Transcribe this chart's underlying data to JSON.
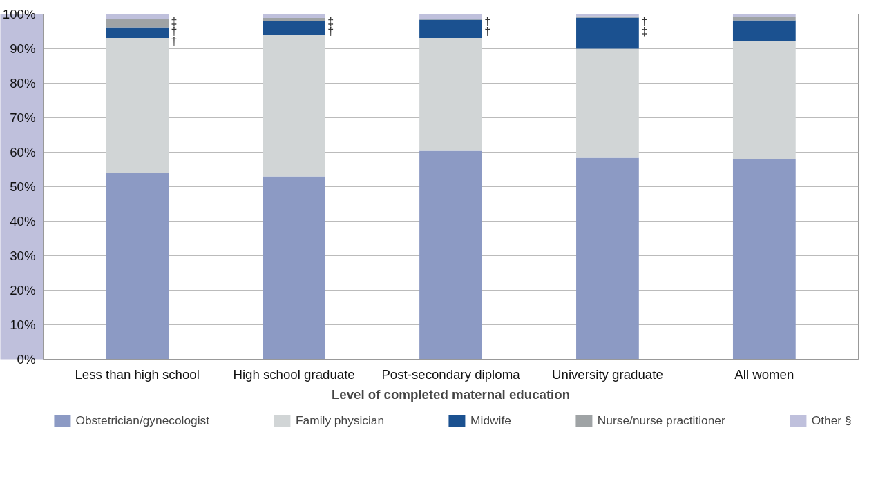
{
  "chart_data": {
    "type": "bar",
    "stacked": true,
    "xlabel": "Level of completed maternal education",
    "categories": [
      "Less than high school",
      "High school graduate",
      "Post-secondary diploma",
      "University graduate",
      "All women"
    ],
    "series": [
      {
        "name": "Obstetrician/gynecologist",
        "color": "#8c9ac4",
        "values": [
          53.9,
          53.0,
          60.4,
          58.4,
          57.9
        ]
      },
      {
        "name": "Family physician",
        "color": "#d1d5d6",
        "values": [
          39.2,
          41.0,
          32.7,
          31.6,
          34.3
        ]
      },
      {
        "name": "Midwife",
        "color": "#1b5190",
        "values": [
          3.1,
          4.0,
          5.3,
          9.0,
          6.0
        ]
      },
      {
        "name": "Nurse/nurse practitioner",
        "color": "#9fa3a5",
        "values": [
          2.5,
          0.9,
          0.3,
          0.4,
          0.9
        ]
      },
      {
        "name": "Other §",
        "color": "#bfc0dc",
        "values": [
          1.3,
          1.1,
          1.3,
          0.6,
          0.9
        ]
      }
    ],
    "ylim": [
      0,
      100
    ],
    "yticks": [
      {
        "value": 0,
        "label": "0%"
      },
      {
        "value": 10,
        "label": "10%"
      },
      {
        "value": 20,
        "label": "20%"
      },
      {
        "value": 30,
        "label": "30%"
      },
      {
        "value": 40,
        "label": "40%"
      },
      {
        "value": 50,
        "label": "50%"
      },
      {
        "value": 60,
        "label": "60%"
      },
      {
        "value": 70,
        "label": "70%"
      },
      {
        "value": 80,
        "label": "80%"
      },
      {
        "value": 90,
        "label": "90%"
      },
      {
        "value": 100,
        "label": "100%"
      }
    ],
    "grid": "y",
    "legend": "bottom",
    "annotations": [
      "‡",
      "†",
      "†",
      "‡",
      "†",
      "†",
      "†",
      "†",
      "‡"
    ]
  }
}
